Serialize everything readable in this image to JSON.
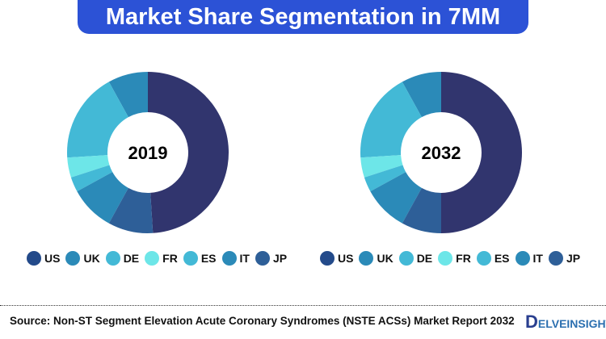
{
  "title": "Market Share Segmentation in 7MM",
  "chart_data": [
    {
      "type": "pie",
      "title": "2019",
      "categories": [
        "US",
        "UK",
        "DE",
        "FR",
        "ES",
        "IT",
        "JP"
      ],
      "values": [
        49,
        8,
        18,
        4,
        3,
        9,
        9
      ]
    },
    {
      "type": "pie",
      "title": "2032",
      "categories": [
        "US",
        "UK",
        "DE",
        "FR",
        "ES",
        "IT",
        "JP"
      ],
      "values": [
        50,
        8,
        18,
        4,
        3,
        9,
        8
      ]
    }
  ],
  "colors": {
    "US": "#31356e",
    "UK": "#2b8ab8",
    "DE": "#43b9d6",
    "FR": "#6de6e8",
    "ES": "#43b9d6",
    "IT": "#2b8ab8",
    "JP": "#2e5f98"
  },
  "legend_colors": {
    "US": "#234a8a",
    "UK": "#2b8ab8",
    "DE": "#43b9d6",
    "FR": "#6de6e8",
    "ES": "#43b9d6",
    "IT": "#2b8ab8",
    "JP": "#2e5f98"
  },
  "source": "Source: Non-ST Segment Elevation Acute Coronary Syndromes (NSTE ACSs) Market Report 2032",
  "logo": "DELVEINSIGHT"
}
